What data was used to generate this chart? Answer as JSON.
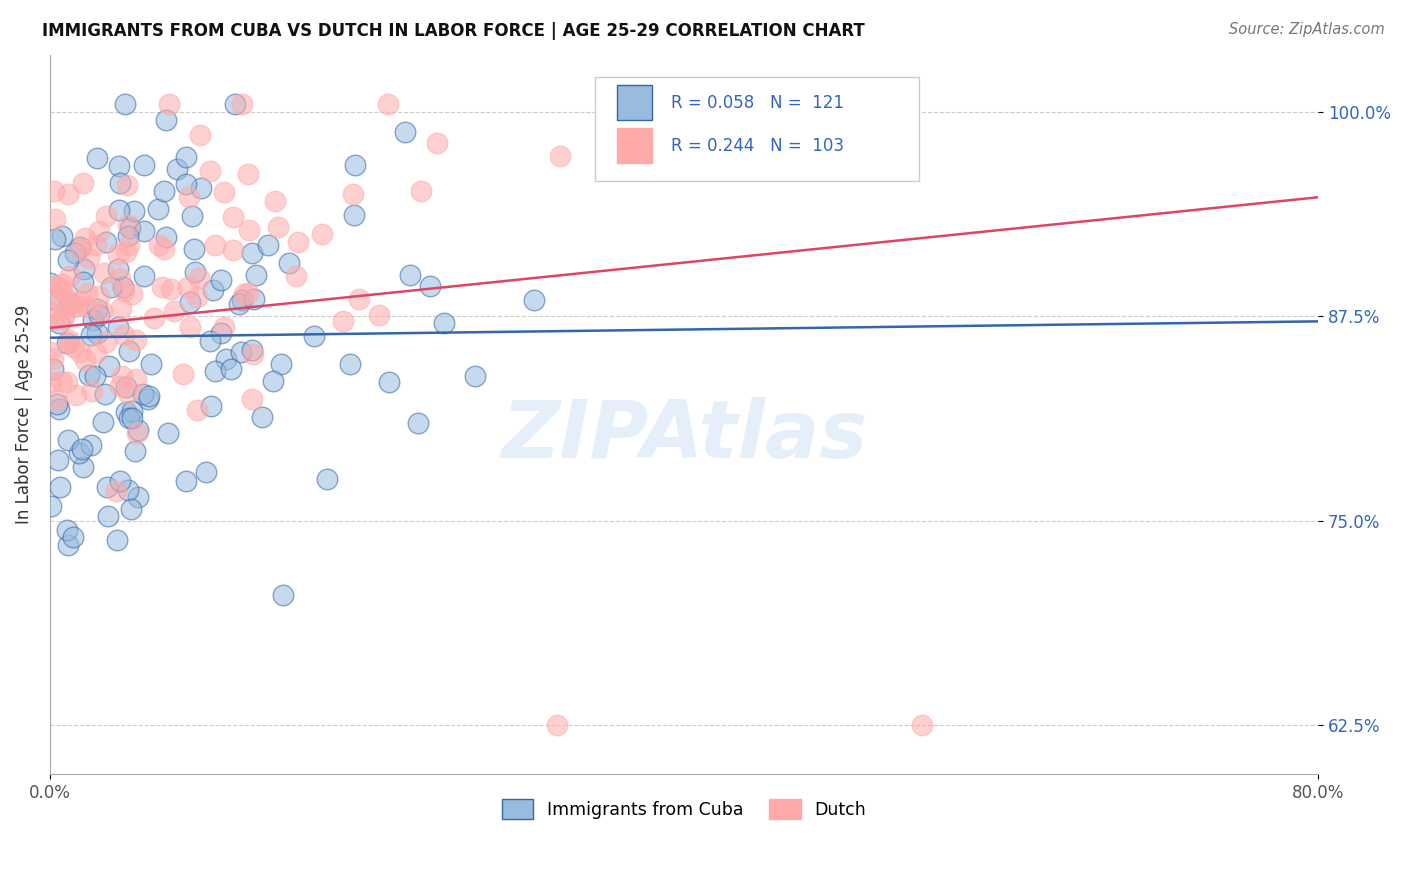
{
  "title": "IMMIGRANTS FROM CUBA VS DUTCH IN LABOR FORCE | AGE 25-29 CORRELATION CHART",
  "source": "Source: ZipAtlas.com",
  "ylabel": "In Labor Force | Age 25-29",
  "xlim": [
    0.0,
    0.8
  ],
  "ylim": [
    0.595,
    1.035
  ],
  "yticks": [
    0.625,
    0.75,
    0.875,
    1.0
  ],
  "yticklabels": [
    "62.5%",
    "75.0%",
    "87.5%",
    "100.0%"
  ],
  "color_cuba": "#99BBDD",
  "color_dutch": "#FFAAAA",
  "color_trend_cuba": "#3366AA",
  "color_trend_dutch": "#DD4466",
  "color_rn_text": "#3366BB",
  "watermark": "ZIPAtlas",
  "watermark_color": "#AACCEE",
  "grid_color": "#CCCCCC",
  "background": "#FFFFFF",
  "cuba_trend_y0": 0.862,
  "cuba_trend_y1": 0.872,
  "dutch_trend_y0": 0.868,
  "dutch_trend_y1": 0.948
}
